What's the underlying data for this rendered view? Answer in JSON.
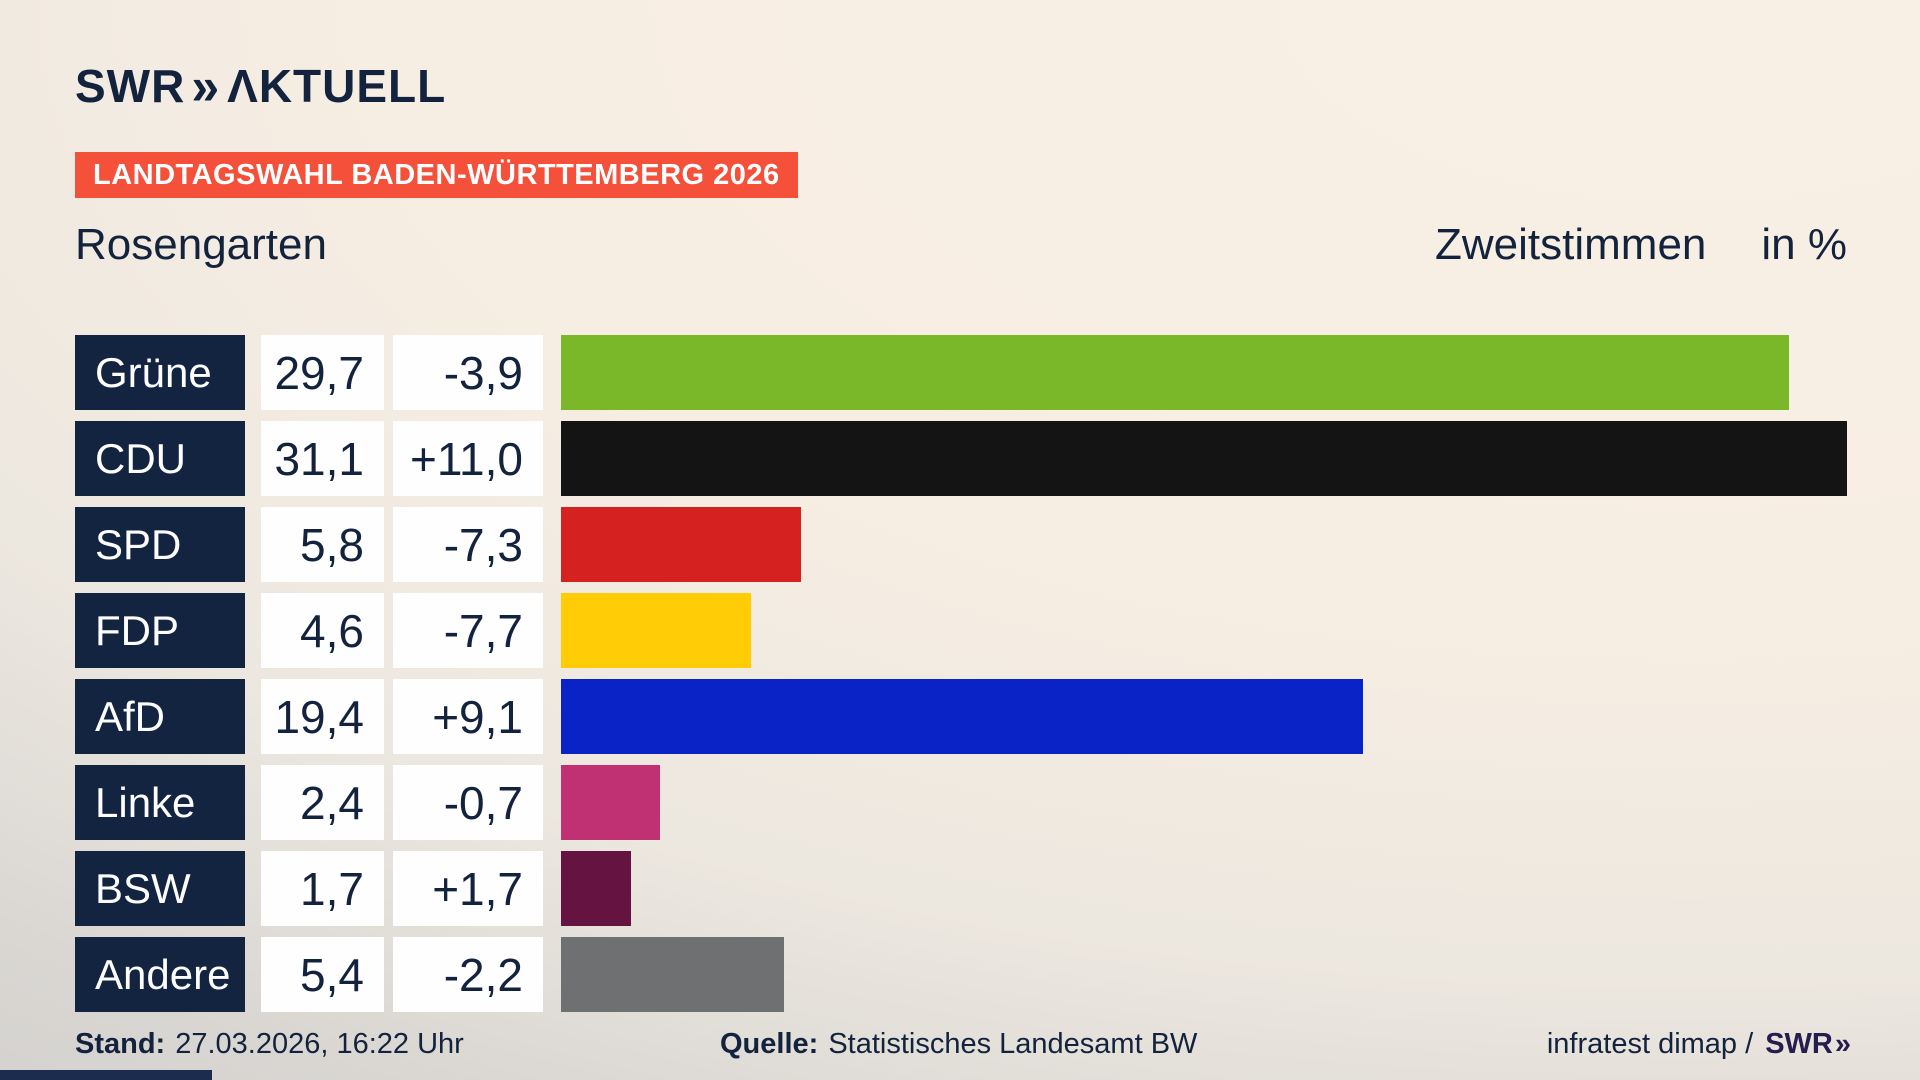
{
  "brand": {
    "swr": "SWR",
    "chevrons": "»",
    "product": "ΛKTUELL"
  },
  "header": {
    "banner": "LANDTAGSWAHL BADEN-WÜRTTEMBERG 2026",
    "region": "Rosengarten",
    "measure": "Zweitstimmen",
    "unit": "in %"
  },
  "chart_data": {
    "type": "bar",
    "orientation": "horizontal",
    "title": "Zweitstimmen in %",
    "categories": [
      "Grüne",
      "CDU",
      "SPD",
      "FDP",
      "AfD",
      "Linke",
      "BSW",
      "Andere"
    ],
    "values": [
      29.7,
      31.1,
      5.8,
      4.6,
      19.4,
      2.4,
      1.7,
      5.4
    ],
    "value_labels": [
      "29,7",
      "31,1",
      "5,8",
      "4,6",
      "19,4",
      "2,4",
      "1,7",
      "5,4"
    ],
    "change_labels": [
      "-3,9",
      "+11,0",
      "-7,3",
      "-7,7",
      "+9,1",
      "-0,7",
      "+1,7",
      "-2,2"
    ],
    "bar_colors": [
      "#7ab829",
      "#141414",
      "#d52221",
      "#ffcc05",
      "#0a23c6",
      "#c03174",
      "#651442",
      "#6f7072"
    ],
    "xlim": [
      0,
      31.1
    ],
    "grid": false,
    "legend": false
  },
  "footer": {
    "stand_label": "Stand:",
    "stand_value": "27.03.2026, 16:22 Uhr",
    "source_label": "Quelle:",
    "source_value": "Statistisches Landesamt BW",
    "credit_text": "infratest dimap /",
    "credit_logo_swr": "SWR",
    "credit_logo_chevrons": "»"
  },
  "colors": {
    "navy_text": "#13233d",
    "label_box": "#122440",
    "banner_red": "#f4503a",
    "background_top": "#f9f0e5",
    "background_bottom": "#d2d0cd"
  }
}
